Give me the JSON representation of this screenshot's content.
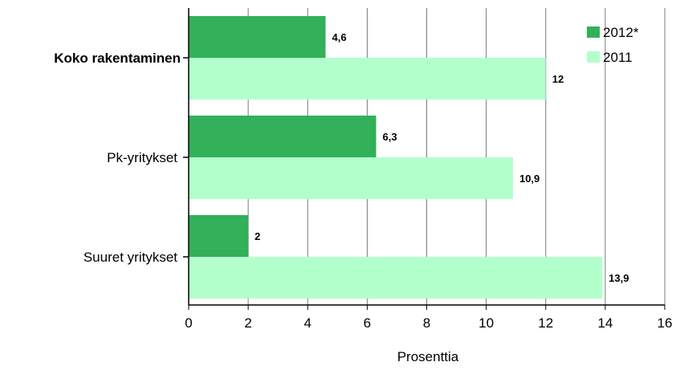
{
  "chart_data": {
    "type": "bar",
    "orientation": "horizontal",
    "categories": [
      "Koko rakentaminen",
      "Pk-yritykset",
      "Suuret yritykset"
    ],
    "category_bold": [
      true,
      false,
      false
    ],
    "series": [
      {
        "name": "2012*",
        "values": [
          4.6,
          6.3,
          2
        ],
        "labels": [
          "4,6",
          "6,3",
          "2"
        ],
        "color": "#33b05a"
      },
      {
        "name": "2011",
        "values": [
          12,
          10.9,
          13.9
        ],
        "labels": [
          "12",
          "10,9",
          "13,9"
        ],
        "color": "#b2ffcc"
      }
    ],
    "xlabel": "Prosenttia",
    "xlim": [
      0,
      16
    ],
    "xticks": [
      0,
      2,
      4,
      6,
      8,
      10,
      12,
      14,
      16
    ],
    "grid": true,
    "legend": "top-right"
  }
}
